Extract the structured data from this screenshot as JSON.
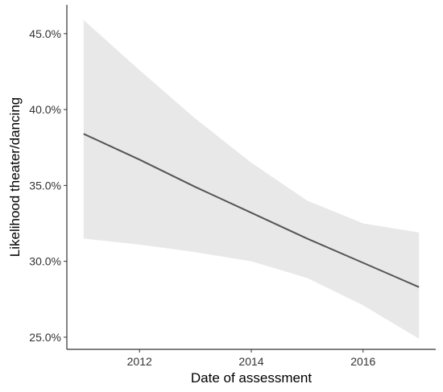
{
  "chart_data": {
    "type": "line",
    "title": "",
    "xlabel": "Date of assessment",
    "ylabel": "Likelihood theater/dancing",
    "xlim": [
      2010.7,
      2017.3
    ],
    "ylim": [
      24.2,
      46.9
    ],
    "x_ticks": [
      2012,
      2014,
      2016
    ],
    "x_tick_labels": [
      "2012",
      "2014",
      "2016"
    ],
    "y_ticks": [
      25.0,
      30.0,
      35.0,
      40.0,
      45.0
    ],
    "y_tick_labels": [
      "25.0%",
      "30.0%",
      "35.0%",
      "40.0%",
      "45.0%"
    ],
    "grid": false,
    "legend": "none",
    "series": [
      {
        "x": [
          2011,
          2012,
          2013,
          2014,
          2015,
          2016,
          2017
        ],
        "y": [
          38.4,
          36.7,
          34.9,
          33.2,
          31.5,
          29.9,
          28.3
        ],
        "lower": [
          31.5,
          31.1,
          30.6,
          30.0,
          28.9,
          27.1,
          24.9
        ],
        "upper": [
          45.9,
          42.6,
          39.4,
          36.5,
          34.0,
          32.5,
          31.9
        ]
      }
    ],
    "colors": {
      "line": "#555555",
      "band": "#e8e8e8",
      "axis": "#333333"
    }
  }
}
